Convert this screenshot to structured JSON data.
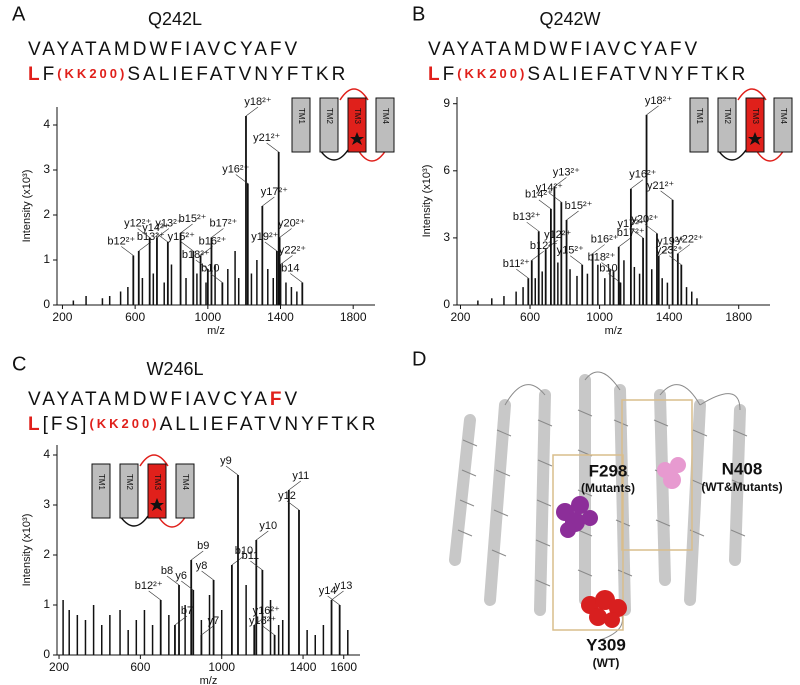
{
  "chart_data": [
    {
      "type": "stem",
      "panel": "A",
      "title": "Q242L",
      "x_label": "m/z",
      "y_label": "Intensity (x10³)",
      "sequence_top": {
        "segments": [
          "VAYATAMDWFIAVCYAFV"
        ],
        "colors": [
          "#111111"
        ]
      },
      "sequence_bottom": {
        "segments": [
          "L",
          "F",
          "(KK200)",
          "SALIEFATVNYFTKR"
        ],
        "colors": [
          "#e0201b",
          "#111111",
          "#e0201b",
          "#111111"
        ]
      },
      "topology": [
        "TM1",
        "TM2",
        "TM3",
        "TM4"
      ],
      "xlim": [
        170,
        1920
      ],
      "xticks": [
        200,
        600,
        1000,
        1400,
        1800
      ],
      "ylim": [
        0,
        4.4
      ],
      "yticks": [
        0,
        1,
        2,
        3,
        4
      ],
      "peaks": {
        "x": [
          260,
          330,
          420,
          460,
          520,
          560,
          640,
          700,
          760,
          800,
          880,
          940,
          990,
          1040,
          1110,
          1150,
          1170,
          1240,
          1270,
          1330,
          1360,
          1430,
          1460,
          1490
        ],
        "values": [
          0.1,
          0.2,
          0.15,
          0.2,
          0.3,
          0.4,
          0.6,
          0.7,
          0.5,
          0.9,
          0.6,
          0.7,
          0.5,
          0.9,
          0.8,
          1.2,
          0.6,
          0.7,
          1.0,
          0.8,
          0.6,
          0.5,
          0.4,
          0.3
        ],
        "color": "#111111"
      },
      "labeled_peaks": {
        "x": [
          590,
          620,
          680,
          720,
          780,
          850,
          920,
          960,
          1000,
          1020,
          1080,
          1210,
          1220,
          1300,
          1390,
          1395,
          1380,
          1400,
          1520
        ],
        "values": [
          1.1,
          1.2,
          1.5,
          1.5,
          1.4,
          1.6,
          1.2,
          1.1,
          0.8,
          1.5,
          0.5,
          4.2,
          2.7,
          2.2,
          3.4,
          1.5,
          1.2,
          0.9,
          0.5
        ],
        "labels": [
          "b12²⁺",
          "b13²⁺",
          "y12²⁺",
          "y13²⁺",
          "y14²⁺",
          "b15²⁺",
          "y15²⁺",
          "b16²⁺",
          "b18²⁺",
          "b17²⁺",
          "b10",
          "y18²⁺",
          "y16²⁺",
          "y17²⁺",
          "y21²⁺",
          "y20²⁺",
          "y19²⁺",
          "y22²⁺",
          "b14"
        ],
        "colors": [
          "#111111",
          "#111111",
          "#111111",
          "#111111",
          "#111111",
          "#111111",
          "#111111",
          "#111111",
          "#111111",
          "#111111",
          "#111111",
          "#e0201b",
          "#e0201b",
          "#e0201b",
          "#e0201b",
          "#e0201b",
          "#e0201b",
          "#e0201b",
          "#111111"
        ]
      }
    },
    {
      "type": "stem",
      "panel": "B",
      "title": "Q242W",
      "x_label": "m/z",
      "y_label": "Intensity (x10³)",
      "sequence_top": {
        "segments": [
          "VAYATAMDWFIAVCYAFV"
        ],
        "colors": [
          "#111111"
        ]
      },
      "sequence_bottom": {
        "segments": [
          "L",
          "F",
          "(KK200)",
          "SALIEFATVNYFTKR"
        ],
        "colors": [
          "#e0201b",
          "#111111",
          "#e0201b",
          "#111111"
        ]
      },
      "topology": [
        "TM1",
        "TM2",
        "TM3",
        "TM4"
      ],
      "xlim": [
        180,
        1980
      ],
      "xticks": [
        200,
        600,
        1000,
        1400,
        1800
      ],
      "ylim": [
        0,
        9.3
      ],
      "yticks": [
        0,
        3,
        6,
        9
      ],
      "peaks": {
        "x": [
          300,
          380,
          450,
          520,
          560,
          630,
          670,
          760,
          830,
          870,
          930,
          990,
          1030,
          1060,
          1140,
          1200,
          1230,
          1300,
          1360,
          1390,
          1500,
          1530,
          1560
        ],
        "values": [
          0.2,
          0.3,
          0.4,
          0.6,
          0.8,
          1.2,
          1.5,
          1.9,
          1.6,
          1.3,
          1.4,
          1.8,
          1.2,
          1.6,
          2.0,
          1.7,
          1.4,
          1.6,
          1.2,
          1.0,
          0.8,
          0.6,
          0.3
        ],
        "color": "#111111"
      },
      "labeled_peaks": {
        "x": [
          590,
          610,
          650,
          690,
          720,
          740,
          780,
          810,
          900,
          960,
          1080,
          1110,
          1120,
          1180,
          1250,
          1270,
          1330,
          1340,
          1420,
          1450,
          1470
        ],
        "values": [
          1.2,
          2.0,
          3.3,
          2.5,
          4.3,
          5.3,
          4.6,
          3.8,
          1.8,
          2.3,
          1.5,
          2.6,
          1.0,
          5.2,
          3.0,
          8.5,
          3.2,
          2.2,
          4.7,
          2.3,
          1.8
        ],
        "labels": [
          "b11²⁺",
          "b12²⁺",
          "b13²⁺",
          "y12²⁺",
          "b14²⁺",
          "y13²⁺",
          "y14²⁺",
          "b15²⁺",
          "y15²⁺",
          "b16²⁺",
          "b18²⁺",
          "b17²⁺",
          "b10",
          "y16²⁺",
          "y17²⁺",
          "y18²⁺",
          "y20²⁺",
          "y19²⁺",
          "y21²⁺",
          "y22²⁺",
          "y23²⁺"
        ],
        "colors": [
          "#111111",
          "#111111",
          "#111111",
          "#111111",
          "#111111",
          "#111111",
          "#111111",
          "#111111",
          "#111111",
          "#111111",
          "#111111",
          "#111111",
          "#111111",
          "#e0201b",
          "#e0201b",
          "#e0201b",
          "#e0201b",
          "#e0201b",
          "#e0201b",
          "#e0201b",
          "#e0201b"
        ]
      }
    },
    {
      "type": "stem",
      "panel": "C",
      "title": "W246L",
      "x_label": "m/z",
      "y_label": "Intensity (x10³)",
      "sequence_top": {
        "segments": [
          "VAYATAMDWFIAVCYA",
          "F",
          "V"
        ],
        "colors": [
          "#111111",
          "#e0201b",
          "#111111"
        ]
      },
      "sequence_bottom": {
        "segments": [
          "L",
          "[FS]",
          "(KK200)",
          "ALLIEFATVNYFTKR"
        ],
        "colors": [
          "#e0201b",
          "#111111",
          "#e0201b",
          "#111111"
        ]
      },
      "topology": [
        "TM1",
        "TM2",
        "TM3",
        "TM4"
      ],
      "xlim": [
        190,
        1680
      ],
      "xticks": [
        200,
        600,
        1000,
        1400,
        1600
      ],
      "ylim": [
        0,
        4.2
      ],
      "yticks": [
        0,
        1,
        2,
        3,
        4
      ],
      "peaks": {
        "x": [
          220,
          250,
          290,
          330,
          370,
          410,
          450,
          500,
          540,
          580,
          620,
          660,
          740,
          820,
          900,
          940,
          1000,
          1120,
          1240,
          1280,
          1300,
          1420,
          1460,
          1500,
          1620
        ],
        "values": [
          1.1,
          0.9,
          0.8,
          0.7,
          1.0,
          0.6,
          0.8,
          0.9,
          0.5,
          0.7,
          0.9,
          0.6,
          0.8,
          1.0,
          0.7,
          1.2,
          0.9,
          1.4,
          1.1,
          0.6,
          0.7,
          0.5,
          0.4,
          0.6,
          0.5
        ],
        "color": "#111111"
      },
      "labeled_peaks": {
        "x": [
          700,
          770,
          790,
          850,
          860,
          900,
          960,
          1050,
          1080,
          1170,
          1200,
          1160,
          1260,
          1330,
          1380,
          1540,
          1580
        ],
        "values": [
          1.1,
          0.6,
          1.4,
          1.9,
          1.3,
          0.4,
          1.5,
          1.8,
          3.6,
          2.3,
          1.7,
          0.6,
          0.4,
          3.3,
          2.9,
          1.1,
          1.0
        ],
        "labels": [
          "b12²⁺",
          "b7",
          "b8",
          "b9",
          "y6",
          "y7",
          "y8",
          "b10",
          "y9",
          "y10",
          "b11",
          "y16²⁺",
          "y18²⁺",
          "y11",
          "y12",
          "y13",
          "y14"
        ],
        "colors": [
          "#111111",
          "#111111",
          "#111111",
          "#111111",
          "#111111",
          "#111111",
          "#111111",
          "#111111",
          "#111111",
          "#111111",
          "#111111",
          "#e0201b",
          "#e0201b",
          "#111111",
          "#111111",
          "#111111",
          "#111111"
        ]
      }
    }
  ],
  "structure": {
    "panel": "D",
    "labels": [
      {
        "name": "F298",
        "note": "(Mutants)",
        "color": "#9b2d9b"
      },
      {
        "name": "N408",
        "note": "(WT&Mutants)",
        "color": "#e2469c"
      },
      {
        "name": "Y309",
        "note": "(WT)",
        "color": "#d81f1f"
      }
    ]
  }
}
